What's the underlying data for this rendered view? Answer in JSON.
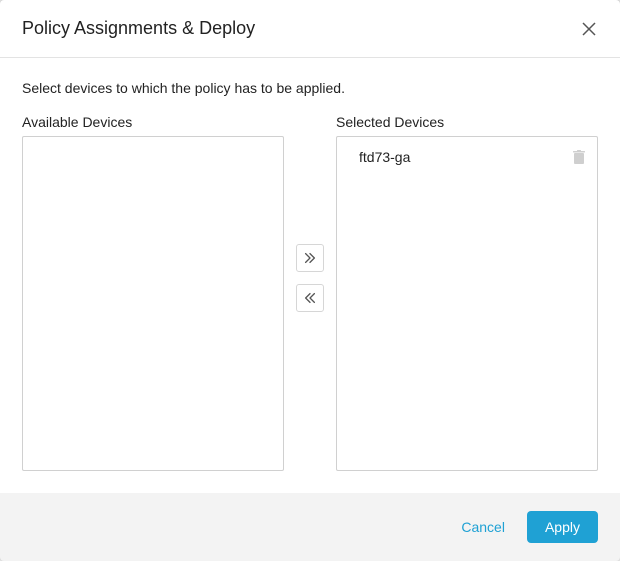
{
  "header": {
    "title": "Policy Assignments & Deploy"
  },
  "instruction": "Select devices to which the policy has to be applied.",
  "available": {
    "label": "Available Devices",
    "items": []
  },
  "selected": {
    "label": "Selected Devices",
    "items": [
      {
        "name": "ftd73-ga"
      }
    ]
  },
  "footer": {
    "cancel_label": "Cancel",
    "apply_label": "Apply"
  },
  "colors": {
    "primary": "#1fa1d4",
    "border": "#d0d0d0",
    "footer_bg": "#f3f3f3"
  }
}
